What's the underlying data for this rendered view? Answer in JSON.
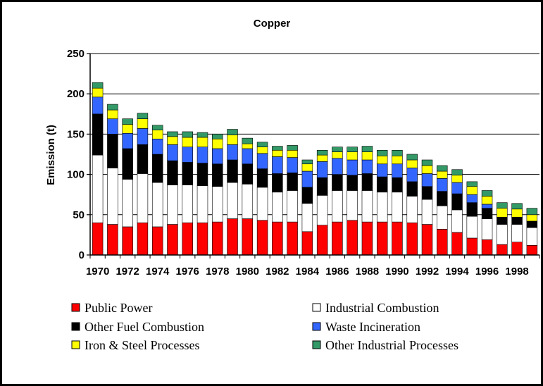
{
  "chart_data": {
    "type": "bar",
    "stacked": true,
    "title": "Copper",
    "xlabel": "",
    "ylabel": "Emission (t)",
    "ylim": [
      0,
      250
    ],
    "yticks": [
      0,
      50,
      100,
      150,
      200,
      250
    ],
    "grid": true,
    "legend_placement": "bottom",
    "categories": [
      "1970",
      "1971",
      "1972",
      "1973",
      "1974",
      "1975",
      "1976",
      "1977",
      "1978",
      "1979",
      "1980",
      "1981",
      "1982",
      "1983",
      "1984",
      "1985",
      "1986",
      "1987",
      "1988",
      "1989",
      "1990",
      "1991",
      "1992",
      "1993",
      "1994",
      "1995",
      "1996",
      "1997",
      "1998",
      "1999"
    ],
    "xtick_labels": [
      "1970",
      "1972",
      "1974",
      "1976",
      "1978",
      "1980",
      "1982",
      "1984",
      "1986",
      "1988",
      "1990",
      "1992",
      "1994",
      "1996",
      "1998"
    ],
    "series": [
      {
        "name": "Public Power",
        "color": "#ff0000",
        "values": [
          40,
          38,
          35,
          40,
          35,
          38,
          40,
          40,
          41,
          45,
          45,
          43,
          41,
          41,
          29,
          37,
          41,
          43,
          41,
          41,
          41,
          40,
          38,
          32,
          28,
          21,
          19,
          13,
          16,
          12
        ]
      },
      {
        "name": "Industrial Combustion",
        "color": "#ffffff",
        "values": [
          84,
          70,
          59,
          61,
          55,
          49,
          47,
          46,
          44,
          45,
          43,
          41,
          37,
          39,
          35,
          37,
          39,
          37,
          39,
          37,
          37,
          33,
          31,
          29,
          28,
          27,
          26,
          25,
          22,
          22
        ]
      },
      {
        "name": "Other Fuel Combustion",
        "color": "#000000",
        "values": [
          51,
          42,
          38,
          36,
          35,
          30,
          28,
          28,
          28,
          28,
          25,
          23,
          23,
          22,
          20,
          22,
          20,
          19,
          21,
          19,
          18,
          18,
          16,
          18,
          20,
          17,
          13,
          9,
          9,
          8
        ]
      },
      {
        "name": "Waste Incineration",
        "color": "#3366ff",
        "values": [
          21,
          19,
          19,
          20,
          19,
          20,
          19,
          20,
          19,
          19,
          19,
          19,
          21,
          19,
          20,
          20,
          20,
          19,
          17,
          16,
          17,
          17,
          16,
          16,
          14,
          10,
          5,
          0,
          0,
          0
        ]
      },
      {
        "name": "Iron & Steel Processes",
        "color": "#ffff00",
        "values": [
          11,
          11,
          11,
          12,
          11,
          10,
          12,
          12,
          12,
          12,
          6,
          8,
          8,
          9,
          9,
          8,
          8,
          10,
          10,
          10,
          10,
          10,
          10,
          9,
          9,
          10,
          10,
          11,
          10,
          8
        ]
      },
      {
        "name": "Other Industrial Processes",
        "color": "#339966",
        "values": [
          7,
          7,
          7,
          7,
          6,
          6,
          7,
          6,
          6,
          7,
          7,
          6,
          5,
          6,
          5,
          6,
          6,
          6,
          7,
          7,
          7,
          7,
          7,
          7,
          7,
          6,
          7,
          7,
          7,
          8
        ]
      }
    ]
  }
}
